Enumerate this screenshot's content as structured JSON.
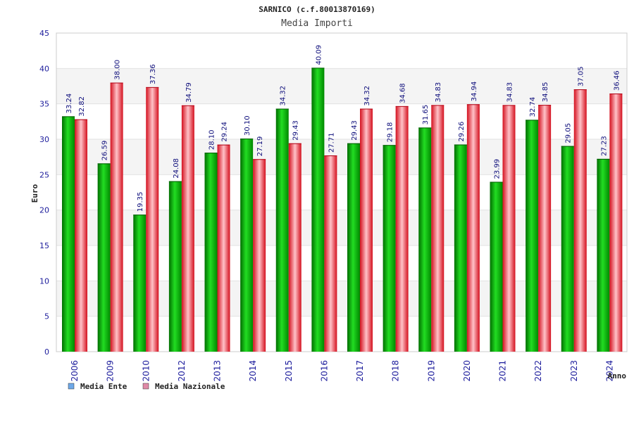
{
  "chart_data": {
    "type": "bar",
    "title": "SARNICO (c.f.80013870169)",
    "subtitle": "Media Importi",
    "xlabel": "Anno",
    "ylabel": "Euro",
    "ylim": [
      0,
      45
    ],
    "yticks": [
      "0",
      "5",
      "10",
      "15",
      "20",
      "25",
      "30",
      "35",
      "40",
      "45"
    ],
    "categories": [
      "2006",
      "2009",
      "2010",
      "2012",
      "2013",
      "2014",
      "2015",
      "2016",
      "2017",
      "2018",
      "2019",
      "2020",
      "2021",
      "2022",
      "2023",
      "2024"
    ],
    "series": [
      {
        "name": "Media Ente",
        "color": "#00c000",
        "legend_color": "#6ea8e8",
        "values": [
          33.24,
          26.59,
          19.35,
          24.08,
          28.1,
          30.1,
          34.32,
          40.09,
          29.43,
          29.18,
          31.65,
          29.26,
          23.99,
          32.74,
          29.05,
          27.23
        ],
        "labels": [
          "33.24",
          "26.59",
          "19.35",
          "24.08",
          "28.10",
          "30.10",
          "34.32",
          "40.09",
          "29.43",
          "29.18",
          "31.65",
          "29.26",
          "23.99",
          "32.74",
          "29.05",
          "27.23"
        ]
      },
      {
        "name": "Media Nazionale",
        "color": "#ee2a3a",
        "legend_color": "#e08aa8",
        "values": [
          32.82,
          38.0,
          37.36,
          34.79,
          29.24,
          27.19,
          29.43,
          27.71,
          34.32,
          34.68,
          34.83,
          34.94,
          34.83,
          34.85,
          37.05,
          36.46
        ],
        "labels": [
          "32.82",
          "38.00",
          "37.36",
          "34.79",
          "29.24",
          "27.19",
          "29.43",
          "27.71",
          "34.32",
          "34.68",
          "34.83",
          "34.94",
          "34.83",
          "34.85",
          "37.05",
          "36.46"
        ]
      }
    ],
    "grid": true,
    "legend": "bottom-left"
  }
}
